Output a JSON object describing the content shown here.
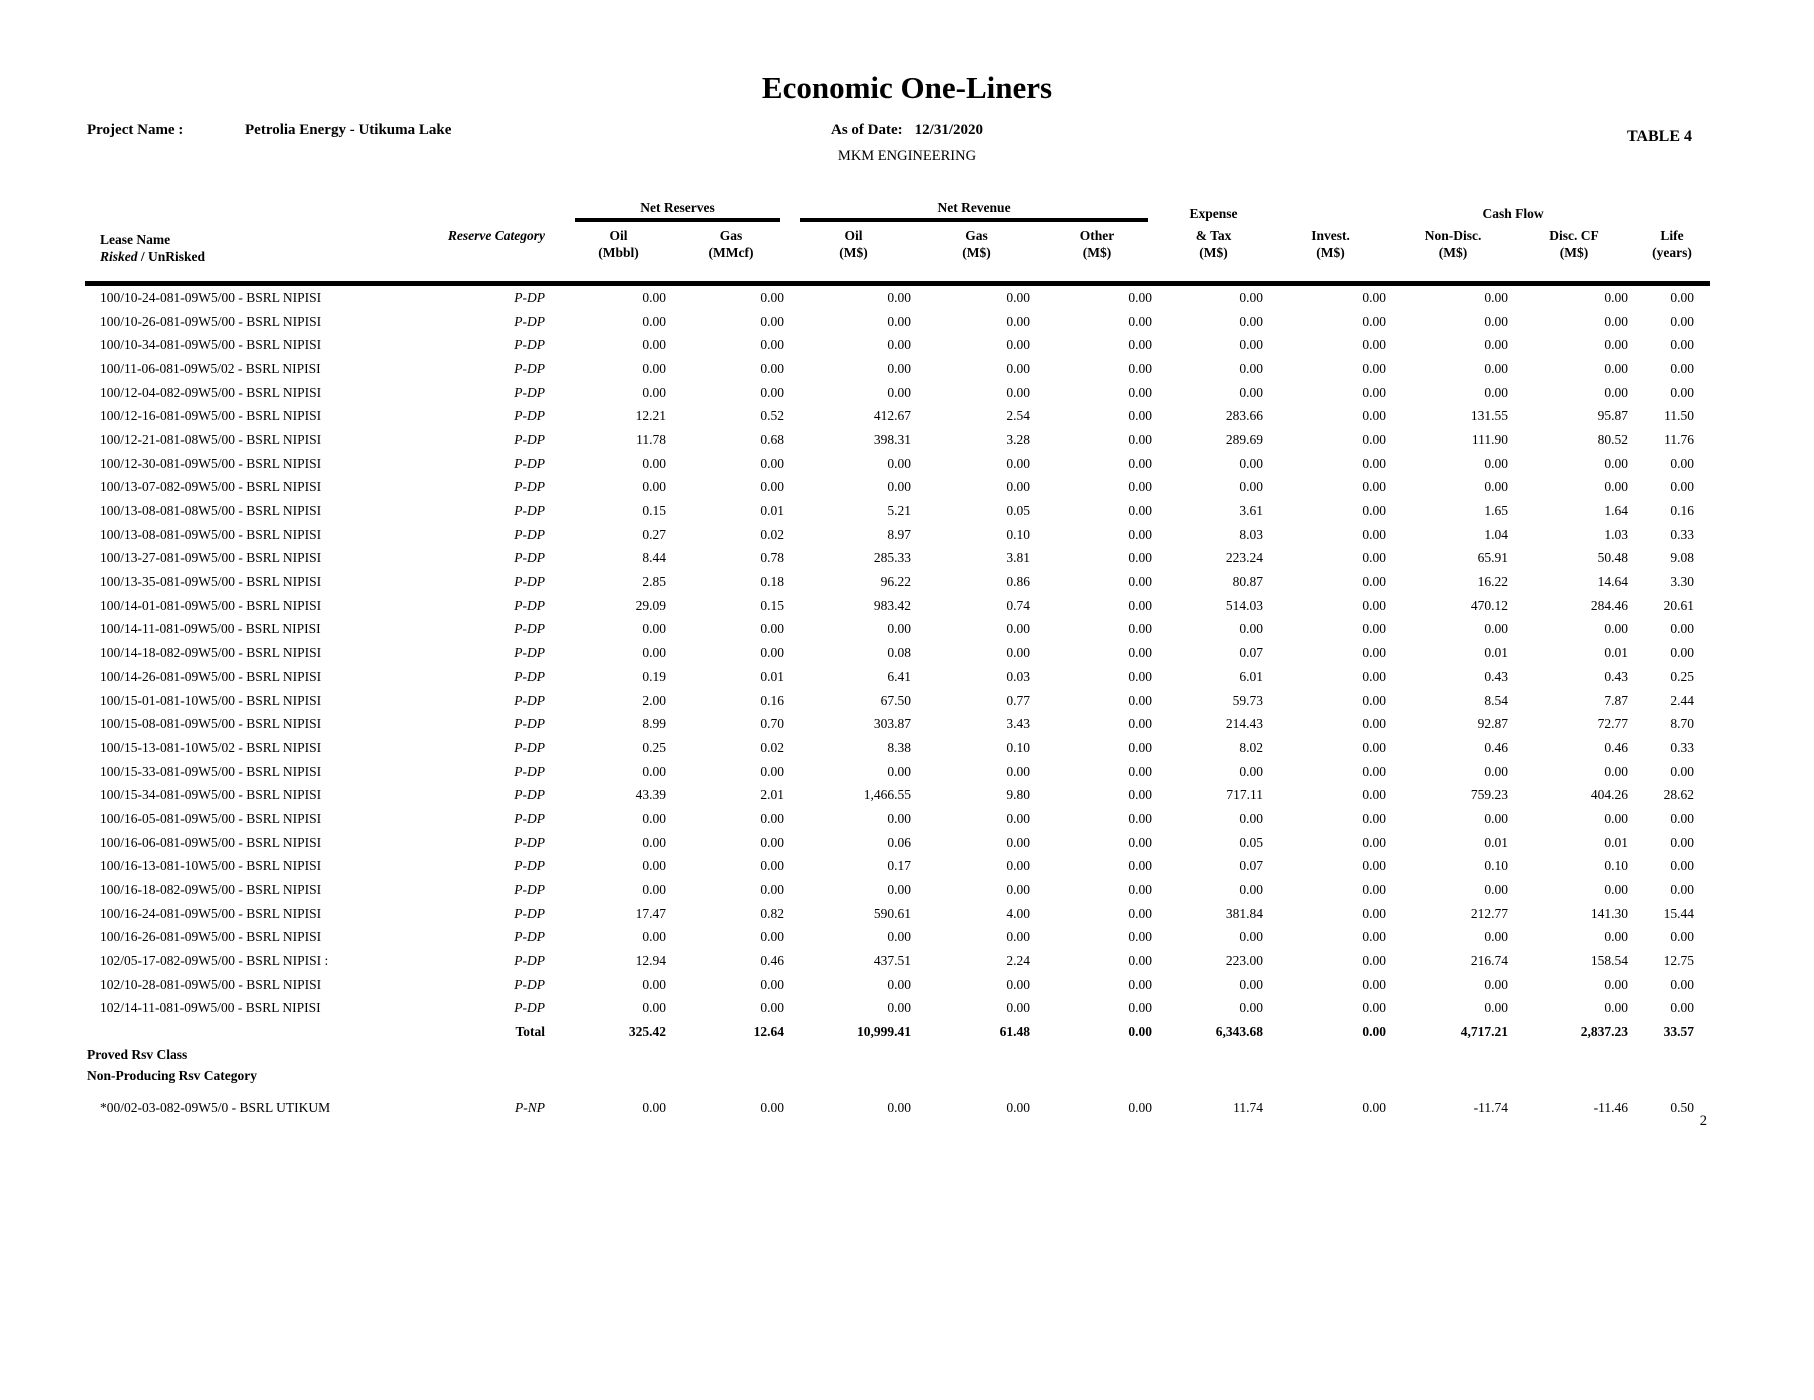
{
  "header": {
    "title": "Economic One-Liners",
    "project_label": "Project Name :",
    "project_name": "Petrolia Energy - Utikuma Lake",
    "as_of_label": "As of Date:",
    "as_of_date": "12/31/2020",
    "company": "MKM ENGINEERING",
    "table_label": "TABLE 4"
  },
  "table": {
    "groups": {
      "net_reserves": "Net Reserves",
      "net_revenue": "Net Revenue",
      "cash_flow": "Cash Flow"
    },
    "lease_header": {
      "line1": "Lease Name",
      "risked": "Risked",
      "rest": " / UnRisked"
    },
    "category_header": "Reserve Category",
    "value_columns": [
      {
        "lines": [
          "Oil",
          "(Mbbl)"
        ]
      },
      {
        "lines": [
          "Gas",
          "(MMcf)"
        ]
      },
      {
        "lines": [
          "Oil",
          "(M$)"
        ]
      },
      {
        "lines": [
          "Gas",
          "(M$)"
        ]
      },
      {
        "lines": [
          "Other",
          "(M$)"
        ]
      },
      {
        "lines": [
          "Expense",
          "& Tax",
          "(M$)"
        ]
      },
      {
        "lines": [
          "Invest.",
          "(M$)"
        ]
      },
      {
        "lines": [
          "Non-Disc.",
          "(M$)"
        ]
      },
      {
        "lines": [
          "Disc. CF",
          "(M$)"
        ]
      },
      {
        "lines": [
          "Life",
          "(years)"
        ]
      }
    ],
    "rows": [
      {
        "lease": "100/10-24-081-09W5/00 - BSRL NIPISI",
        "category": "P-DP",
        "values": [
          "0.00",
          "0.00",
          "0.00",
          "0.00",
          "0.00",
          "0.00",
          "0.00",
          "0.00",
          "0.00",
          "0.00"
        ]
      },
      {
        "lease": "100/10-26-081-09W5/00 - BSRL NIPISI",
        "category": "P-DP",
        "values": [
          "0.00",
          "0.00",
          "0.00",
          "0.00",
          "0.00",
          "0.00",
          "0.00",
          "0.00",
          "0.00",
          "0.00"
        ]
      },
      {
        "lease": "100/10-34-081-09W5/00 - BSRL NIPISI",
        "category": "P-DP",
        "values": [
          "0.00",
          "0.00",
          "0.00",
          "0.00",
          "0.00",
          "0.00",
          "0.00",
          "0.00",
          "0.00",
          "0.00"
        ]
      },
      {
        "lease": "100/11-06-081-09W5/02 - BSRL NIPISI",
        "category": "P-DP",
        "values": [
          "0.00",
          "0.00",
          "0.00",
          "0.00",
          "0.00",
          "0.00",
          "0.00",
          "0.00",
          "0.00",
          "0.00"
        ]
      },
      {
        "lease": "100/12-04-082-09W5/00 - BSRL NIPISI",
        "category": "P-DP",
        "values": [
          "0.00",
          "0.00",
          "0.00",
          "0.00",
          "0.00",
          "0.00",
          "0.00",
          "0.00",
          "0.00",
          "0.00"
        ]
      },
      {
        "lease": "100/12-16-081-09W5/00 - BSRL NIPISI",
        "category": "P-DP",
        "values": [
          "12.21",
          "0.52",
          "412.67",
          "2.54",
          "0.00",
          "283.66",
          "0.00",
          "131.55",
          "95.87",
          "11.50"
        ]
      },
      {
        "lease": "100/12-21-081-08W5/00 - BSRL NIPISI",
        "category": "P-DP",
        "values": [
          "11.78",
          "0.68",
          "398.31",
          "3.28",
          "0.00",
          "289.69",
          "0.00",
          "111.90",
          "80.52",
          "11.76"
        ]
      },
      {
        "lease": "100/12-30-081-09W5/00 - BSRL NIPISI",
        "category": "P-DP",
        "values": [
          "0.00",
          "0.00",
          "0.00",
          "0.00",
          "0.00",
          "0.00",
          "0.00",
          "0.00",
          "0.00",
          "0.00"
        ]
      },
      {
        "lease": "100/13-07-082-09W5/00 - BSRL NIPISI",
        "category": "P-DP",
        "values": [
          "0.00",
          "0.00",
          "0.00",
          "0.00",
          "0.00",
          "0.00",
          "0.00",
          "0.00",
          "0.00",
          "0.00"
        ]
      },
      {
        "lease": "100/13-08-081-08W5/00 - BSRL NIPISI",
        "category": "P-DP",
        "values": [
          "0.15",
          "0.01",
          "5.21",
          "0.05",
          "0.00",
          "3.61",
          "0.00",
          "1.65",
          "1.64",
          "0.16"
        ]
      },
      {
        "lease": "100/13-08-081-09W5/00 - BSRL NIPISI",
        "category": "P-DP",
        "values": [
          "0.27",
          "0.02",
          "8.97",
          "0.10",
          "0.00",
          "8.03",
          "0.00",
          "1.04",
          "1.03",
          "0.33"
        ]
      },
      {
        "lease": "100/13-27-081-09W5/00 - BSRL NIPISI",
        "category": "P-DP",
        "values": [
          "8.44",
          "0.78",
          "285.33",
          "3.81",
          "0.00",
          "223.24",
          "0.00",
          "65.91",
          "50.48",
          "9.08"
        ]
      },
      {
        "lease": "100/13-35-081-09W5/00 - BSRL NIPISI",
        "category": "P-DP",
        "values": [
          "2.85",
          "0.18",
          "96.22",
          "0.86",
          "0.00",
          "80.87",
          "0.00",
          "16.22",
          "14.64",
          "3.30"
        ]
      },
      {
        "lease": "100/14-01-081-09W5/00 - BSRL NIPISI",
        "category": "P-DP",
        "values": [
          "29.09",
          "0.15",
          "983.42",
          "0.74",
          "0.00",
          "514.03",
          "0.00",
          "470.12",
          "284.46",
          "20.61"
        ]
      },
      {
        "lease": "100/14-11-081-09W5/00 - BSRL NIPISI",
        "category": "P-DP",
        "values": [
          "0.00",
          "0.00",
          "0.00",
          "0.00",
          "0.00",
          "0.00",
          "0.00",
          "0.00",
          "0.00",
          "0.00"
        ]
      },
      {
        "lease": "100/14-18-082-09W5/00 - BSRL NIPISI",
        "category": "P-DP",
        "values": [
          "0.00",
          "0.00",
          "0.08",
          "0.00",
          "0.00",
          "0.07",
          "0.00",
          "0.01",
          "0.01",
          "0.00"
        ]
      },
      {
        "lease": "100/14-26-081-09W5/00 - BSRL NIPISI",
        "category": "P-DP",
        "values": [
          "0.19",
          "0.01",
          "6.41",
          "0.03",
          "0.00",
          "6.01",
          "0.00",
          "0.43",
          "0.43",
          "0.25"
        ]
      },
      {
        "lease": "100/15-01-081-10W5/00 - BSRL NIPISI",
        "category": "P-DP",
        "values": [
          "2.00",
          "0.16",
          "67.50",
          "0.77",
          "0.00",
          "59.73",
          "0.00",
          "8.54",
          "7.87",
          "2.44"
        ]
      },
      {
        "lease": "100/15-08-081-09W5/00 - BSRL NIPISI",
        "category": "P-DP",
        "values": [
          "8.99",
          "0.70",
          "303.87",
          "3.43",
          "0.00",
          "214.43",
          "0.00",
          "92.87",
          "72.77",
          "8.70"
        ]
      },
      {
        "lease": "100/15-13-081-10W5/02 - BSRL NIPISI",
        "category": "P-DP",
        "values": [
          "0.25",
          "0.02",
          "8.38",
          "0.10",
          "0.00",
          "8.02",
          "0.00",
          "0.46",
          "0.46",
          "0.33"
        ]
      },
      {
        "lease": "100/15-33-081-09W5/00 - BSRL NIPISI",
        "category": "P-DP",
        "values": [
          "0.00",
          "0.00",
          "0.00",
          "0.00",
          "0.00",
          "0.00",
          "0.00",
          "0.00",
          "0.00",
          "0.00"
        ]
      },
      {
        "lease": "100/15-34-081-09W5/00 - BSRL NIPISI",
        "category": "P-DP",
        "values": [
          "43.39",
          "2.01",
          "1,466.55",
          "9.80",
          "0.00",
          "717.11",
          "0.00",
          "759.23",
          "404.26",
          "28.62"
        ]
      },
      {
        "lease": "100/16-05-081-09W5/00 - BSRL NIPISI",
        "category": "P-DP",
        "values": [
          "0.00",
          "0.00",
          "0.00",
          "0.00",
          "0.00",
          "0.00",
          "0.00",
          "0.00",
          "0.00",
          "0.00"
        ]
      },
      {
        "lease": "100/16-06-081-09W5/00 - BSRL NIPISI",
        "category": "P-DP",
        "values": [
          "0.00",
          "0.00",
          "0.06",
          "0.00",
          "0.00",
          "0.05",
          "0.00",
          "0.01",
          "0.01",
          "0.00"
        ]
      },
      {
        "lease": "100/16-13-081-10W5/00 - BSRL NIPISI",
        "category": "P-DP",
        "values": [
          "0.00",
          "0.00",
          "0.17",
          "0.00",
          "0.00",
          "0.07",
          "0.00",
          "0.10",
          "0.10",
          "0.00"
        ]
      },
      {
        "lease": "100/16-18-082-09W5/00 - BSRL NIPISI",
        "category": "P-DP",
        "values": [
          "0.00",
          "0.00",
          "0.00",
          "0.00",
          "0.00",
          "0.00",
          "0.00",
          "0.00",
          "0.00",
          "0.00"
        ]
      },
      {
        "lease": "100/16-24-081-09W5/00 - BSRL NIPISI",
        "category": "P-DP",
        "values": [
          "17.47",
          "0.82",
          "590.61",
          "4.00",
          "0.00",
          "381.84",
          "0.00",
          "212.77",
          "141.30",
          "15.44"
        ]
      },
      {
        "lease": "100/16-26-081-09W5/00 - BSRL NIPISI",
        "category": "P-DP",
        "values": [
          "0.00",
          "0.00",
          "0.00",
          "0.00",
          "0.00",
          "0.00",
          "0.00",
          "0.00",
          "0.00",
          "0.00"
        ]
      },
      {
        "lease": "102/05-17-082-09W5/00 - BSRL NIPISI :",
        "category": "P-DP",
        "values": [
          "12.94",
          "0.46",
          "437.51",
          "2.24",
          "0.00",
          "223.00",
          "0.00",
          "216.74",
          "158.54",
          "12.75"
        ]
      },
      {
        "lease": "102/10-28-081-09W5/00 - BSRL NIPISI",
        "category": "P-DP",
        "values": [
          "0.00",
          "0.00",
          "0.00",
          "0.00",
          "0.00",
          "0.00",
          "0.00",
          "0.00",
          "0.00",
          "0.00"
        ]
      },
      {
        "lease": "102/14-11-081-09W5/00 - BSRL NIPISI",
        "category": "P-DP",
        "values": [
          "0.00",
          "0.00",
          "0.00",
          "0.00",
          "0.00",
          "0.00",
          "0.00",
          "0.00",
          "0.00",
          "0.00"
        ]
      }
    ],
    "total": {
      "label": "Total",
      "values": [
        "325.42",
        "12.64",
        "10,999.41",
        "61.48",
        "0.00",
        "6,343.68",
        "0.00",
        "4,717.21",
        "2,837.23",
        "33.57"
      ]
    },
    "sections": [
      "Proved Rsv Class",
      "Non-Producing Rsv Category"
    ],
    "np_row": {
      "lease": "*00/02-03-082-09W5/0 - BSRL UTIKUM",
      "category": "P-NP",
      "values": [
        "0.00",
        "0.00",
        "0.00",
        "0.00",
        "0.00",
        "11.74",
        "0.00",
        "-11.74",
        "-11.46",
        "0.50"
      ]
    }
  },
  "footer": {
    "page_number": "2"
  }
}
